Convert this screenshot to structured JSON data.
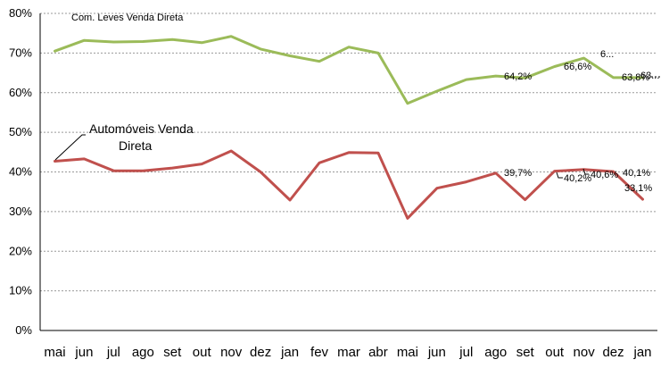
{
  "chart_data": {
    "type": "line",
    "categories": [
      "mai",
      "jun",
      "jul",
      "ago",
      "set",
      "out",
      "nov",
      "dez",
      "jan",
      "fev",
      "mar",
      "abr",
      "mai",
      "jun",
      "jul",
      "ago",
      "set",
      "out",
      "nov",
      "dez",
      "jan"
    ],
    "ylim": [
      0,
      80
    ],
    "yticks": [
      "0%",
      "10%",
      "20%",
      "30%",
      "40%",
      "50%",
      "60%",
      "70%",
      "80%"
    ],
    "grid": true,
    "series": [
      {
        "name": "Com. Leves Venda Direta",
        "color": "#9bbb59",
        "values": [
          70.5,
          73.2,
          72.8,
          72.9,
          73.4,
          72.6,
          74.2,
          71.0,
          69.3,
          67.9,
          71.5,
          70.0,
          57.3,
          60.4,
          63.3,
          64.2,
          63.7,
          66.6,
          68.7,
          63.8,
          63.8
        ]
      },
      {
        "name": "Automóveis Venda Direta",
        "color": "#c0504d",
        "values": [
          42.7,
          43.3,
          40.3,
          40.3,
          41.0,
          42.0,
          45.3,
          40.0,
          32.9,
          42.3,
          44.9,
          44.8,
          28.3,
          35.9,
          37.5,
          39.7,
          33.0,
          40.2,
          40.6,
          40.1,
          33.1
        ]
      }
    ],
    "annotations": {
      "series1_label": "Com. Leves Venda Direta",
      "series2_label_line1": "Automóveis Venda",
      "series2_label_line2": "Direta"
    },
    "data_labels": [
      {
        "text": "64,2%"
      },
      {
        "text": "66,6%"
      },
      {
        "text": "6..."
      },
      {
        "text": "63,8%"
      },
      {
        "text": "63..."
      },
      {
        "text": "39,7%"
      },
      {
        "text": "40,2%"
      },
      {
        "text": "40,6%"
      },
      {
        "text": "40,1%"
      },
      {
        "text": "33,1%"
      }
    ]
  }
}
